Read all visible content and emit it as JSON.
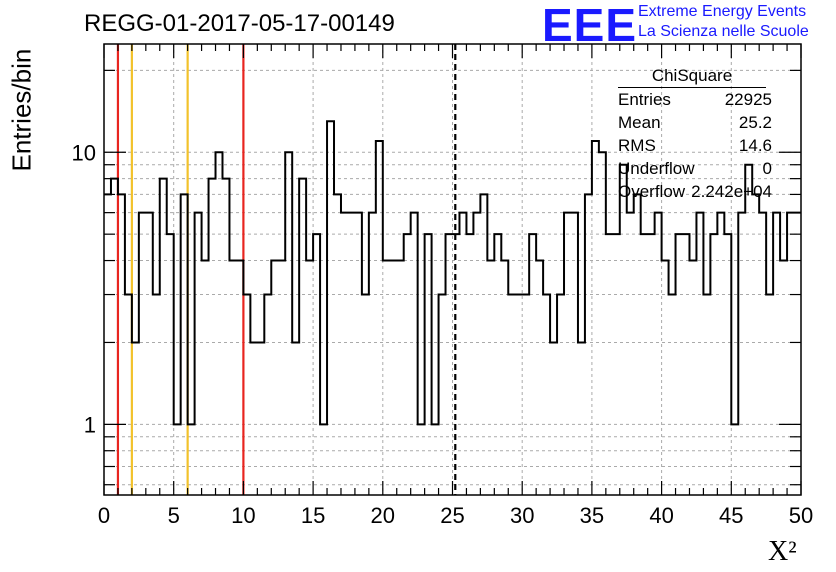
{
  "header": {
    "title": "REGG-01-2017-05-17-00149",
    "logo_text": "EEE",
    "logo_line1": "Extreme Energy Events",
    "logo_line2": "La Scienza nelle Scuole"
  },
  "stats_box": {
    "title": "ChiSquare",
    "rows": [
      {
        "label": "Entries",
        "value": "22925"
      },
      {
        "label": "Mean",
        "value": "25.2"
      },
      {
        "label": "RMS",
        "value": "14.6"
      },
      {
        "label": "Underflow",
        "value": "0"
      },
      {
        "label": "Overflow",
        "value": "2.242e+04"
      }
    ]
  },
  "chart_data": {
    "type": "histogram",
    "xlabel": "X²",
    "ylabel": "Entries/bin",
    "xlim": [
      0,
      50
    ],
    "ylim": [
      0.55,
      25
    ],
    "yscale": "log",
    "bin_width": 0.5,
    "x_ticks": [
      0,
      5,
      10,
      15,
      20,
      25,
      30,
      35,
      40,
      45,
      50
    ],
    "y_ticks": [
      1,
      10
    ],
    "grid": true,
    "values": [
      7,
      8,
      7,
      3,
      2,
      6,
      6,
      3,
      8,
      5,
      1,
      7,
      1,
      6,
      4,
      8,
      10,
      8,
      4,
      4,
      3,
      2,
      2,
      3,
      4,
      4,
      10,
      2,
      8,
      4,
      5,
      1,
      13,
      7,
      6,
      6,
      6,
      3,
      6,
      11,
      4,
      4,
      4,
      5,
      6,
      1,
      5,
      1,
      3,
      5,
      5,
      6,
      5,
      6,
      7,
      4,
      5,
      4,
      3,
      3,
      3,
      5,
      4,
      3,
      2,
      3,
      6,
      6,
      2,
      7,
      11,
      10,
      5,
      5,
      9,
      6,
      7,
      5,
      5,
      6,
      4,
      3,
      5,
      5,
      4,
      6,
      3,
      5,
      6,
      5,
      1,
      6,
      9,
      7,
      6,
      3,
      6,
      4,
      6,
      6
    ],
    "vertical_lines": [
      {
        "x": 1,
        "color": "#e8251f",
        "style": "solid"
      },
      {
        "x": 2,
        "color": "#f2c22b",
        "style": "solid"
      },
      {
        "x": 6,
        "color": "#f2c22b",
        "style": "solid"
      },
      {
        "x": 10,
        "color": "#e8251f",
        "style": "solid"
      },
      {
        "x": 25.2,
        "color": "#000000",
        "style": "dashed"
      }
    ]
  }
}
